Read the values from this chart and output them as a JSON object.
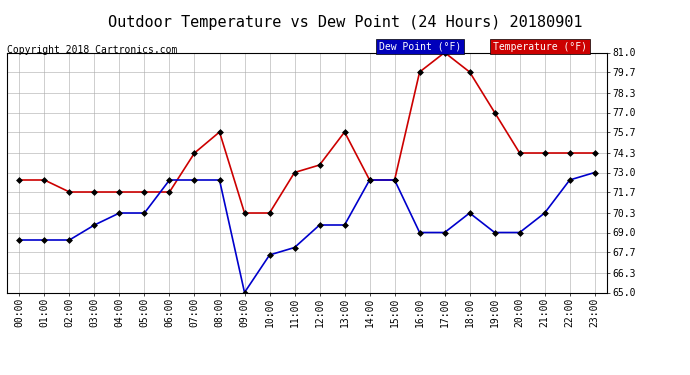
{
  "title": "Outdoor Temperature vs Dew Point (24 Hours) 20180901",
  "copyright": "Copyright 2018 Cartronics.com",
  "hours": [
    "00:00",
    "01:00",
    "02:00",
    "03:00",
    "04:00",
    "05:00",
    "06:00",
    "07:00",
    "08:00",
    "09:00",
    "10:00",
    "11:00",
    "12:00",
    "13:00",
    "14:00",
    "15:00",
    "16:00",
    "17:00",
    "18:00",
    "19:00",
    "20:00",
    "21:00",
    "22:00",
    "23:00"
  ],
  "temperature": [
    72.5,
    72.5,
    71.7,
    71.7,
    71.7,
    71.7,
    71.7,
    74.3,
    75.7,
    70.3,
    70.3,
    73.0,
    73.5,
    75.7,
    72.5,
    72.5,
    79.7,
    81.0,
    79.7,
    77.0,
    74.3,
    74.3,
    74.3,
    74.3
  ],
  "dew_point": [
    68.5,
    68.5,
    68.5,
    69.5,
    70.3,
    70.3,
    72.5,
    72.5,
    72.5,
    65.0,
    67.5,
    68.0,
    69.5,
    69.5,
    72.5,
    72.5,
    69.0,
    69.0,
    70.3,
    69.0,
    69.0,
    70.3,
    72.5,
    73.0
  ],
  "temp_color": "#cc0000",
  "dew_color": "#0000cc",
  "ylim_min": 65.0,
  "ylim_max": 81.0,
  "yticks": [
    65.0,
    66.3,
    67.7,
    69.0,
    70.3,
    71.7,
    73.0,
    74.3,
    75.7,
    77.0,
    78.3,
    79.7,
    81.0
  ],
  "bg_color": "#ffffff",
  "plot_bg_color": "#ffffff",
  "grid_color": "#aaaaaa",
  "legend_dew_bg": "#0000bb",
  "legend_temp_bg": "#cc0000",
  "legend_text_color": "#ffffff",
  "title_fontsize": 11,
  "copyright_fontsize": 7,
  "tick_fontsize": 7,
  "marker": "D",
  "marker_size": 3,
  "line_width": 1.2
}
